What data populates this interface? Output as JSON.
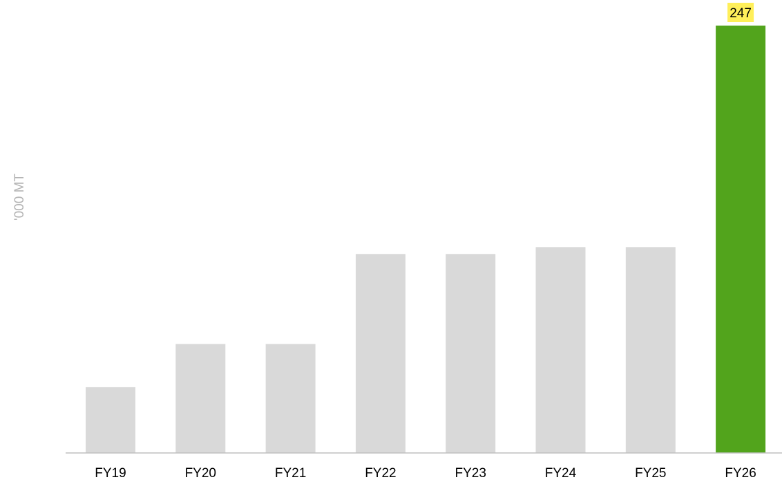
{
  "chart_data": {
    "type": "bar",
    "title": "",
    "xlabel": "",
    "ylabel": "'000 MT",
    "categories": [
      "FY19",
      "FY20",
      "FY21",
      "FY22",
      "FY23",
      "FY24",
      "FY25",
      "FY26"
    ],
    "values": [
      38,
      63,
      63,
      115,
      115,
      119,
      119,
      247
    ],
    "data_labels": [
      "",
      "",
      "",
      "",
      "",
      "",
      "",
      "247"
    ],
    "ylim": [
      0,
      247
    ],
    "grid": false,
    "legend": "none",
    "colors": {
      "bar_default": "#d9d9d9",
      "bar_highlight": "#52a41c",
      "label_highlight": "#ffef5a",
      "axis": "#bfbfbf",
      "ylabel": "#b3b3b3"
    },
    "highlight_index": 7
  }
}
